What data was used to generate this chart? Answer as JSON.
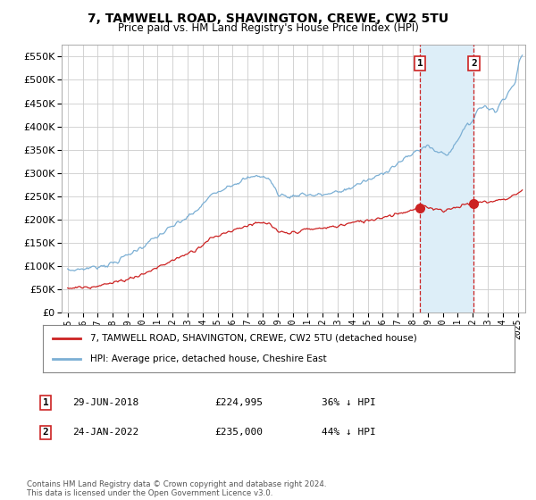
{
  "title": "7, TAMWELL ROAD, SHAVINGTON, CREWE, CW2 5TU",
  "subtitle": "Price paid vs. HM Land Registry's House Price Index (HPI)",
  "ylabel_ticks": [
    0,
    50000,
    100000,
    150000,
    200000,
    250000,
    300000,
    350000,
    400000,
    450000,
    500000,
    550000
  ],
  "ylim": [
    0,
    575000
  ],
  "xlim_start": 1994.6,
  "xlim_end": 2025.5,
  "x_tick_years": [
    1995,
    1996,
    1997,
    1998,
    1999,
    2000,
    2001,
    2002,
    2003,
    2004,
    2005,
    2006,
    2007,
    2008,
    2009,
    2010,
    2011,
    2012,
    2013,
    2014,
    2015,
    2016,
    2017,
    2018,
    2019,
    2020,
    2021,
    2022,
    2023,
    2024,
    2025
  ],
  "hpi_color": "#7bafd4",
  "hpi_fill_color": "#ddeef8",
  "price_color": "#cc2222",
  "marker1_x": 2018.49,
  "marker1_y": 224995,
  "marker1_label": "29-JUN-2018",
  "marker1_price": "£224,995",
  "marker1_pct": "36% ↓ HPI",
  "marker2_x": 2022.07,
  "marker2_y": 235000,
  "marker2_label": "24-JAN-2022",
  "marker2_price": "£235,000",
  "marker2_pct": "44% ↓ HPI",
  "legend_line1": "7, TAMWELL ROAD, SHAVINGTON, CREWE, CW2 5TU (detached house)",
  "legend_line2": "HPI: Average price, detached house, Cheshire East",
  "footnote": "Contains HM Land Registry data © Crown copyright and database right 2024.\nThis data is licensed under the Open Government Licence v3.0.",
  "background_color": "#ffffff",
  "grid_color": "#cccccc"
}
